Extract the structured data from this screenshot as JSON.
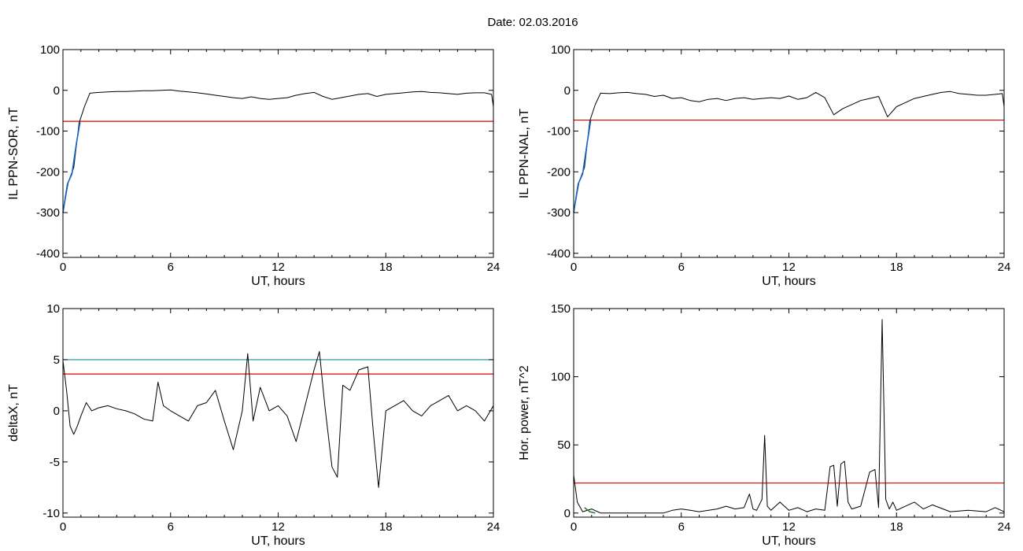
{
  "figure": {
    "title": "Date:  02.03.2016"
  },
  "chart_data": [
    {
      "type": "line",
      "xlabel": "UT, hours",
      "ylabel": "IL PPN-SOR, nT",
      "xlim": [
        0,
        24
      ],
      "ylim": [
        -410,
        100
      ],
      "xticks": [
        0,
        6,
        12,
        18,
        24
      ],
      "yticks": [
        -400,
        -300,
        -200,
        -100,
        0,
        100
      ],
      "threshold": {
        "value": -76,
        "color": "#e00000"
      },
      "series": [
        {
          "color": "#000000",
          "x": [
            0.0,
            0.3,
            0.6,
            0.9,
            1.2,
            1.5,
            2.0,
            2.5,
            3.0,
            3.5,
            4.0,
            4.5,
            5.0,
            5.5,
            6.0,
            6.5,
            7.0,
            7.5,
            8.0,
            8.5,
            9.0,
            9.5,
            10.0,
            10.5,
            11.0,
            11.5,
            12.0,
            12.5,
            13.0,
            13.5,
            14.0,
            14.5,
            15.0,
            15.5,
            16.0,
            16.5,
            17.0,
            17.5,
            18.0,
            18.5,
            19.0,
            19.5,
            20.0,
            20.5,
            21.0,
            21.5,
            22.0,
            22.5,
            23.0,
            23.5,
            23.9,
            24.0
          ],
          "y": [
            -300,
            -225,
            -190,
            -80,
            -40,
            -7,
            -5,
            -4,
            -3,
            -3,
            -2,
            -1,
            -1,
            0,
            1,
            -2,
            -4,
            -6,
            -9,
            -12,
            -15,
            -18,
            -20,
            -16,
            -20,
            -22,
            -20,
            -18,
            -12,
            -8,
            -5,
            -15,
            -22,
            -18,
            -14,
            -10,
            -8,
            -15,
            -10,
            -8,
            -6,
            -4,
            -3,
            -5,
            -6,
            -8,
            -10,
            -7,
            -6,
            -6,
            -10,
            -40
          ]
        },
        {
          "color": "#1565c0",
          "x": [
            0.0,
            0.25,
            0.5,
            0.75,
            0.95
          ],
          "y": [
            -300,
            -230,
            -205,
            -130,
            -78
          ]
        }
      ]
    },
    {
      "type": "line",
      "xlabel": "UT, hours",
      "ylabel": "IL PPN-NAL, nT",
      "xlim": [
        0,
        24
      ],
      "ylim": [
        -410,
        100
      ],
      "xticks": [
        0,
        6,
        12,
        18,
        24
      ],
      "yticks": [
        -400,
        -300,
        -200,
        -100,
        0,
        100
      ],
      "threshold": {
        "value": -73,
        "color": "#e00000"
      },
      "series": [
        {
          "color": "#000000",
          "x": [
            0.0,
            0.3,
            0.6,
            0.9,
            1.2,
            1.5,
            2.0,
            2.5,
            3.0,
            3.5,
            4.0,
            4.5,
            5.0,
            5.5,
            6.0,
            6.5,
            7.0,
            7.5,
            8.0,
            8.5,
            9.0,
            9.5,
            10.0,
            10.5,
            11.0,
            11.5,
            12.0,
            12.5,
            13.0,
            13.5,
            14.0,
            14.5,
            15.0,
            15.5,
            16.0,
            16.5,
            17.0,
            17.5,
            18.0,
            18.5,
            19.0,
            19.5,
            20.0,
            20.5,
            21.0,
            21.5,
            22.0,
            22.5,
            23.0,
            23.5,
            23.9,
            24.0
          ],
          "y": [
            -300,
            -225,
            -190,
            -75,
            -35,
            -7,
            -8,
            -6,
            -5,
            -8,
            -10,
            -15,
            -12,
            -20,
            -18,
            -25,
            -28,
            -22,
            -20,
            -25,
            -20,
            -18,
            -22,
            -20,
            -18,
            -20,
            -14,
            -22,
            -18,
            -5,
            -18,
            -60,
            -45,
            -35,
            -25,
            -20,
            -15,
            -65,
            -40,
            -30,
            -20,
            -15,
            -10,
            -5,
            -3,
            -8,
            -10,
            -12,
            -12,
            -10,
            -8,
            -40
          ]
        },
        {
          "color": "#1565c0",
          "x": [
            0.0,
            0.25,
            0.5,
            0.75,
            0.95
          ],
          "y": [
            -300,
            -230,
            -205,
            -130,
            -73
          ]
        }
      ]
    },
    {
      "type": "line",
      "xlabel": "UT, hours",
      "ylabel": "deltaX, nT",
      "xlim": [
        0,
        24
      ],
      "ylim": [
        -10.4,
        10
      ],
      "xticks": [
        0,
        6,
        12,
        18,
        24
      ],
      "yticks": [
        -10,
        -5,
        0,
        5,
        10
      ],
      "threshold": {
        "value": 3.6,
        "color": "#e00000"
      },
      "threshold2": {
        "value": 5.0,
        "color": "#1a9090"
      },
      "series": [
        {
          "color": "#000000",
          "x": [
            0.0,
            0.2,
            0.4,
            0.6,
            0.8,
            1.0,
            1.3,
            1.6,
            2.0,
            2.5,
            3.0,
            3.5,
            4.0,
            4.5,
            5.0,
            5.3,
            5.6,
            6.0,
            6.5,
            7.0,
            7.5,
            8.0,
            8.5,
            9.0,
            9.5,
            10.0,
            10.3,
            10.6,
            11.0,
            11.5,
            12.0,
            12.5,
            13.0,
            13.5,
            14.0,
            14.3,
            14.6,
            15.0,
            15.3,
            15.6,
            16.0,
            16.5,
            17.0,
            17.3,
            17.6,
            18.0,
            18.5,
            19.0,
            19.5,
            20.0,
            20.5,
            21.0,
            21.5,
            22.0,
            22.5,
            23.0,
            23.5,
            24.0
          ],
          "y": [
            4.9,
            2.0,
            -1.5,
            -2.3,
            -1.5,
            -0.5,
            0.8,
            0.0,
            0.3,
            0.5,
            0.2,
            0.0,
            -0.3,
            -0.8,
            -1.0,
            2.8,
            0.5,
            0.0,
            -0.5,
            -1.0,
            0.5,
            0.8,
            2.0,
            -1.0,
            -3.8,
            0.0,
            5.6,
            -1.0,
            2.3,
            0.0,
            0.5,
            -0.5,
            -3.0,
            0.5,
            4.0,
            5.8,
            0.5,
            -5.5,
            -6.5,
            2.5,
            2.0,
            4.0,
            4.3,
            -2.0,
            -7.5,
            0.0,
            0.5,
            1.0,
            0.0,
            -0.5,
            0.5,
            1.0,
            1.5,
            0.0,
            0.5,
            0.0,
            -1.0,
            0.5
          ]
        }
      ]
    },
    {
      "type": "line",
      "xlabel": "UT, hours",
      "ylabel": "Hor. power, nT^2",
      "xlim": [
        0,
        24
      ],
      "ylim": [
        -3,
        150
      ],
      "xticks": [
        0,
        6,
        12,
        18,
        24
      ],
      "yticks": [
        0,
        50,
        100,
        150
      ],
      "threshold": {
        "value": 22,
        "color": "#e00000"
      },
      "series": [
        {
          "color": "#000000",
          "x": [
            0.0,
            0.2,
            0.5,
            1.0,
            1.5,
            2.0,
            3.0,
            4.0,
            5.0,
            5.5,
            6.0,
            6.5,
            7.0,
            8.0,
            8.5,
            9.0,
            9.5,
            9.8,
            10.0,
            10.2,
            10.5,
            10.65,
            10.8,
            11.0,
            11.5,
            12.0,
            12.5,
            13.0,
            13.5,
            14.0,
            14.3,
            14.5,
            14.7,
            14.9,
            15.1,
            15.3,
            15.5,
            16.0,
            16.5,
            16.8,
            17.0,
            17.2,
            17.4,
            17.6,
            17.8,
            18.0,
            18.5,
            19.0,
            19.5,
            20.0,
            21.0,
            22.0,
            23.0,
            23.5,
            24.0
          ],
          "y": [
            28,
            8,
            1,
            3,
            0,
            0,
            0,
            0,
            0,
            2,
            3,
            2,
            1,
            3,
            5,
            3,
            4,
            14,
            3,
            2,
            10,
            57,
            5,
            2,
            8,
            2,
            4,
            1,
            3,
            2,
            34,
            35,
            5,
            36,
            38,
            8,
            3,
            5,
            30,
            32,
            4,
            142,
            10,
            3,
            8,
            2,
            5,
            8,
            3,
            6,
            1,
            2,
            1,
            4,
            1
          ]
        },
        {
          "color": "#2e7d32",
          "x": [
            0.6,
            0.9,
            1.2
          ],
          "y": [
            4,
            1,
            0
          ]
        }
      ]
    }
  ]
}
